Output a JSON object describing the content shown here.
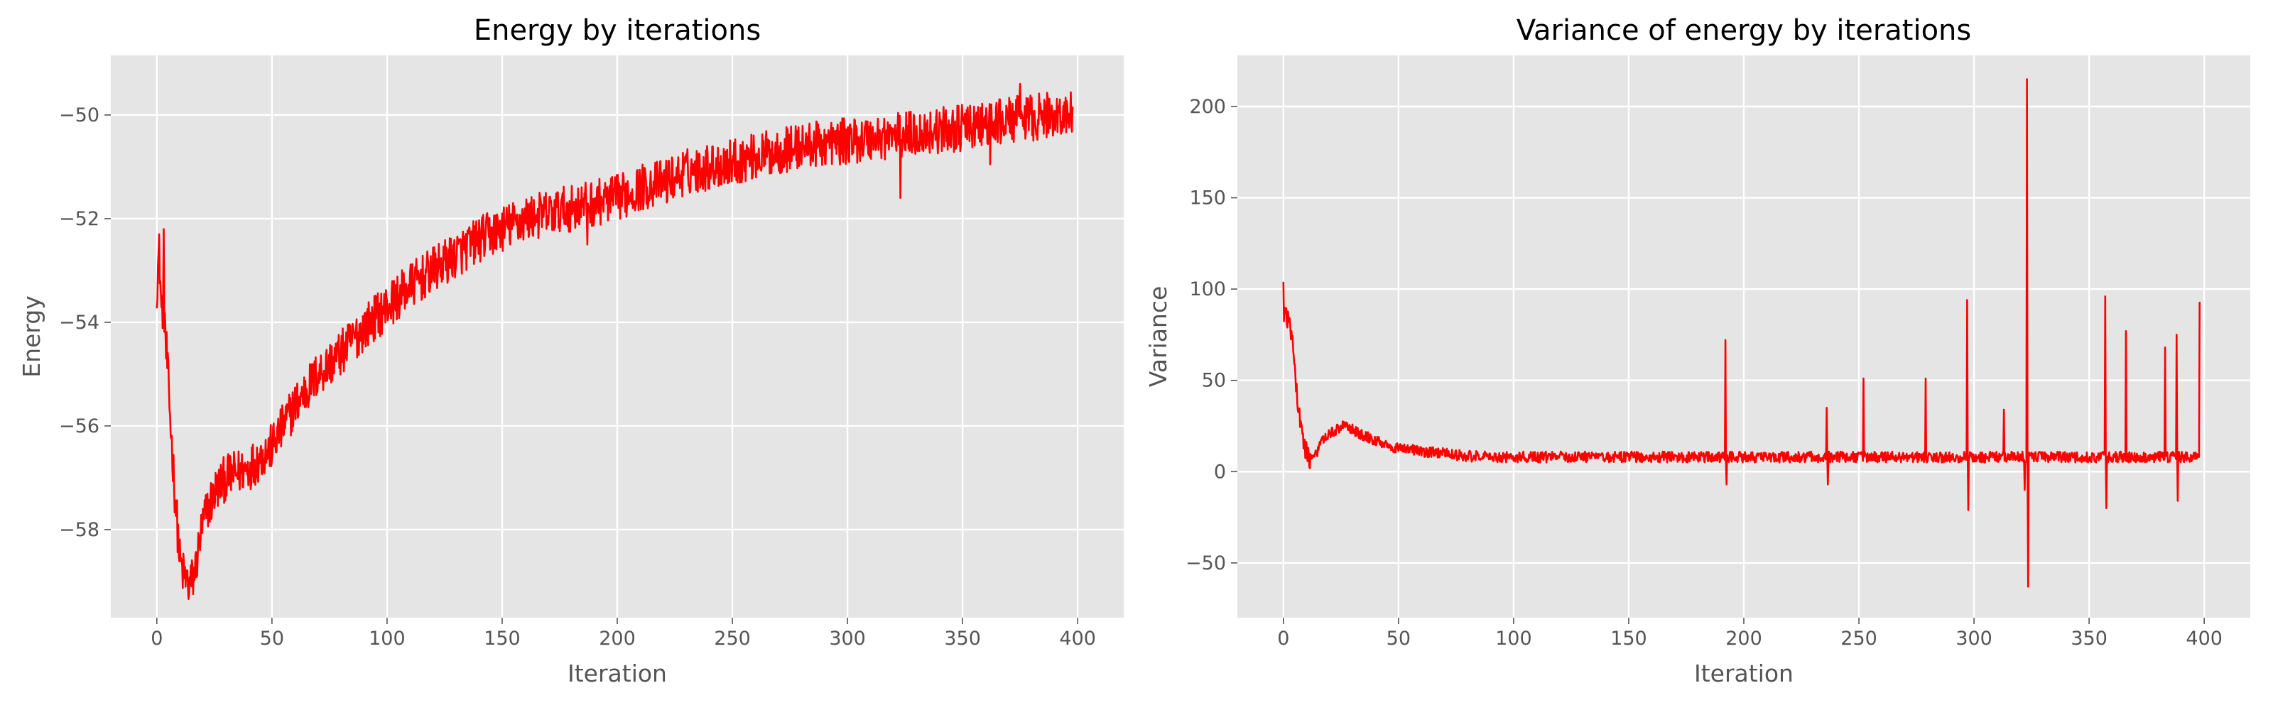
{
  "chart_data": [
    {
      "type": "line",
      "title": "Energy by iterations",
      "xlabel": "Iteration",
      "ylabel": "Energy",
      "xlim": [
        -20,
        420
      ],
      "ylim": [
        -59.7,
        -48.85
      ],
      "xticks": [
        0,
        50,
        100,
        150,
        200,
        250,
        300,
        350,
        400
      ],
      "xtick_labels": [
        "0",
        "50",
        "100",
        "150",
        "200",
        "250",
        "300",
        "350",
        "400"
      ],
      "yticks": [
        -58,
        -56,
        -54,
        -52,
        -50
      ],
      "ytick_labels": [
        "−58",
        "−56",
        "−54",
        "−52",
        "−50"
      ],
      "grid": true,
      "style": "ggplot",
      "series": [
        {
          "name": "Energy",
          "color": "#ff0000",
          "x": [
            0,
            1,
            2,
            3,
            4,
            5,
            6,
            7,
            8,
            9,
            10,
            11,
            12,
            13,
            14,
            15,
            16,
            17,
            18,
            19,
            20,
            22,
            24,
            26,
            28,
            30,
            35,
            40,
            45,
            50,
            60,
            70,
            80,
            90,
            100,
            110,
            120,
            130,
            140,
            150,
            160,
            170,
            180,
            190,
            200,
            210,
            220,
            230,
            240,
            250,
            260,
            270,
            280,
            290,
            300,
            310,
            320,
            330,
            340,
            350,
            360,
            370,
            380,
            390,
            398
          ],
          "values": [
            -53.3,
            -52.6,
            -53.8,
            -53.6,
            -54.4,
            -55.2,
            -56.0,
            -56.7,
            -57.4,
            -58.0,
            -58.6,
            -58.8,
            -58.9,
            -59.0,
            -59.1,
            -59.0,
            -58.9,
            -58.7,
            -58.4,
            -58.1,
            -57.9,
            -57.6,
            -57.4,
            -57.2,
            -57.1,
            -57.0,
            -56.9,
            -56.8,
            -56.6,
            -56.4,
            -55.6,
            -55.0,
            -54.6,
            -54.1,
            -53.7,
            -53.3,
            -53.0,
            -52.7,
            -52.4,
            -52.2,
            -52.0,
            -51.9,
            -51.8,
            -51.7,
            -51.6,
            -51.4,
            -51.3,
            -51.1,
            -51.0,
            -50.9,
            -50.8,
            -50.7,
            -50.6,
            -50.55,
            -50.5,
            -50.45,
            -50.4,
            -50.35,
            -50.3,
            -50.25,
            -50.2,
            -50.1,
            -50.05,
            -50.0,
            -50.0
          ],
          "noise_amplitude": 0.45,
          "spikes": [
            {
              "x": 3,
              "value": -52.2
            },
            {
              "x": 1,
              "value": -52.3
            },
            {
              "x": 4,
              "value": -54.7
            },
            {
              "x": 14,
              "value": -59.25
            },
            {
              "x": 187,
              "value": -52.5
            },
            {
              "x": 300,
              "value": -50.3
            },
            {
              "x": 323,
              "value": -51.6
            },
            {
              "x": 362,
              "value": -50.95
            },
            {
              "x": 375,
              "value": -49.4
            }
          ]
        }
      ]
    },
    {
      "type": "line",
      "title": "Variance of energy by iterations",
      "xlabel": "Iteration",
      "ylabel": "Variance",
      "xlim": [
        -20,
        420
      ],
      "ylim": [
        -80,
        228
      ],
      "xticks": [
        0,
        50,
        100,
        150,
        200,
        250,
        300,
        350,
        400
      ],
      "xtick_labels": [
        "0",
        "50",
        "100",
        "150",
        "200",
        "250",
        "300",
        "350",
        "400"
      ],
      "yticks": [
        -50,
        0,
        50,
        100,
        150,
        200
      ],
      "ytick_labels": [
        "−50",
        "0",
        "50",
        "100",
        "150",
        "200"
      ],
      "grid": true,
      "style": "ggplot",
      "series": [
        {
          "name": "Variance",
          "color": "#ff0000",
          "x": [
            0,
            1,
            2,
            3,
            4,
            5,
            6,
            7,
            8,
            9,
            10,
            11,
            12,
            13,
            14,
            15,
            16,
            18,
            20,
            22,
            24,
            26,
            28,
            30,
            33,
            36,
            40,
            45,
            50,
            60,
            70,
            80,
            90,
            100,
            120,
            140,
            160,
            180,
            200,
            250,
            300,
            350,
            398
          ],
          "values": [
            85,
            90,
            82,
            78,
            70,
            55,
            42,
            30,
            22,
            15,
            11,
            8,
            7,
            7.5,
            9,
            12,
            15,
            18,
            20,
            22,
            24,
            25,
            25,
            23,
            21,
            19,
            17,
            14,
            13,
            11,
            10,
            8.5,
            8,
            8,
            8,
            8,
            8,
            8,
            8,
            8,
            8,
            8,
            8
          ],
          "noise_amplitude": 3.0,
          "spikes": [
            {
              "x": 0,
              "value": 104
            },
            {
              "x": 192,
              "value": 72
            },
            {
              "x": 192.5,
              "value": -7
            },
            {
              "x": 236,
              "value": 35
            },
            {
              "x": 236.5,
              "value": -7
            },
            {
              "x": 252,
              "value": 51
            },
            {
              "x": 279,
              "value": 51
            },
            {
              "x": 297,
              "value": 94
            },
            {
              "x": 297.5,
              "value": -21
            },
            {
              "x": 313,
              "value": 34
            },
            {
              "x": 322,
              "value": -10
            },
            {
              "x": 323,
              "value": 215
            },
            {
              "x": 323.5,
              "value": -63
            },
            {
              "x": 357,
              "value": 96
            },
            {
              "x": 357.5,
              "value": -20
            },
            {
              "x": 366,
              "value": 77
            },
            {
              "x": 383,
              "value": 68
            },
            {
              "x": 388,
              "value": 75
            },
            {
              "x": 388.5,
              "value": -16
            },
            {
              "x": 398,
              "value": 93
            },
            {
              "x": 398.5,
              "value": -10
            }
          ]
        }
      ]
    }
  ]
}
